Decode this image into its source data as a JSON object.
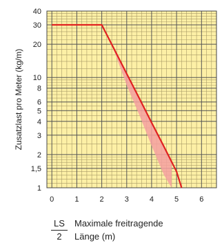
{
  "chart_data": {
    "type": "line",
    "ylabel": "Zusatzlast pro Meter (kg/m)",
    "xlabel": "",
    "x_scale": "linear",
    "y_scale": "log",
    "xlim": [
      -0.2,
      6.6
    ],
    "ylim": [
      1,
      40
    ],
    "x_ticks": [
      0,
      1,
      2,
      3,
      4,
      5,
      6
    ],
    "x_tick_labels": [
      "0",
      "1",
      "2",
      "3",
      "4",
      "5",
      "6"
    ],
    "y_ticks": [
      1,
      1.5,
      2,
      3,
      4,
      5,
      6,
      8,
      10,
      20,
      30,
      40
    ],
    "y_tick_labels": [
      "1",
      "1,5",
      "2",
      "3",
      "4",
      "5",
      "6",
      "8",
      "10",
      "20",
      "30",
      "40"
    ],
    "grid": true,
    "background_color": "#fdf0a6",
    "grid_color": "#555555",
    "line_color": "#e02020",
    "band_color": "#f4a0a0",
    "series": [
      {
        "x": [
          0,
          2,
          2.5,
          3,
          3.5,
          4,
          4.5,
          5,
          5.2
        ],
        "y": [
          30,
          30,
          18,
          10.8,
          6.5,
          3.9,
          2.35,
          1.4,
          1.0
        ]
      }
    ],
    "band": {
      "x": [
        2.3,
        3,
        3.5,
        4,
        4.5,
        4.8
      ],
      "y_upper": [
        23,
        10.8,
        6.5,
        3.9,
        2.35,
        1.8
      ],
      "y_lower": [
        23,
        8.5,
        4.6,
        2.4,
        1.3,
        1.0
      ]
    }
  },
  "legend": [
    {
      "code": "LS",
      "text": "Maximale freitragende"
    },
    {
      "code": "2",
      "text": "Länge (m)"
    }
  ]
}
